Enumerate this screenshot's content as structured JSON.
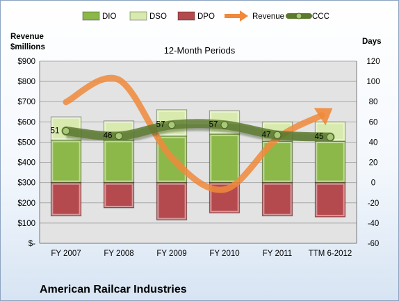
{
  "chart_data": {
    "type": "bar",
    "company": "American Railcar Industries",
    "title": "12-Month Periods",
    "left_axis": {
      "label_line1": "Revenue",
      "label_line2": "$millions",
      "range": [
        0,
        900
      ],
      "ticks": [
        "$-",
        "$100",
        "$200",
        "$300",
        "$400",
        "$500",
        "$600",
        "$700",
        "$800",
        "$900"
      ]
    },
    "right_axis": {
      "label": "Days",
      "range": [
        -60,
        120
      ],
      "ticks": [
        "-60",
        "-40",
        "-20",
        "0",
        "20",
        "40",
        "60",
        "80",
        "100",
        "120"
      ]
    },
    "categories": [
      "FY 2007",
      "FY 2008",
      "FY 2009",
      "FY 2010",
      "FY 2011",
      "TTM 6-2012"
    ],
    "legend": [
      "DIO",
      "DSO",
      "DPO",
      "Revenue",
      "CCC"
    ],
    "series": [
      {
        "name": "DIO",
        "axis": "days",
        "values": [
          42,
          42,
          46,
          48,
          41,
          41
        ]
      },
      {
        "name": "DSO",
        "axis": "days",
        "values": [
          23,
          19,
          26,
          23,
          19,
          19
        ]
      },
      {
        "name": "DPO",
        "axis": "days",
        "values": [
          -33,
          -25,
          -37,
          -30,
          -33,
          -34
        ]
      },
      {
        "name": "Revenue",
        "axis": "revenue",
        "values": [
          698,
          808,
          423,
          266,
          519,
          660
        ]
      },
      {
        "name": "CCC",
        "axis": "days",
        "values": [
          51,
          46,
          57,
          57,
          47,
          45
        ]
      }
    ],
    "data_labels": [
      "51",
      "46",
      "57",
      "57",
      "47",
      "45"
    ],
    "colors": {
      "DIO": "#8cb84a",
      "DSO": "#d8eaae",
      "DPO": "#b54a4e",
      "Revenue": "#f0893c",
      "CCC": "#5b7a2e",
      "plot_bg": "#e3e3e3"
    }
  }
}
